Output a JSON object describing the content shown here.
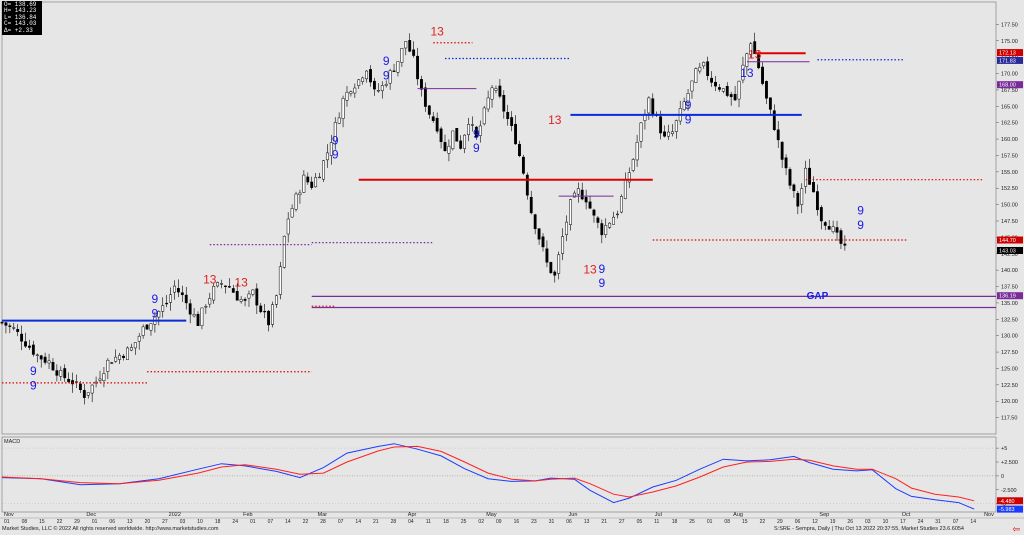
{
  "ohlc_box": {
    "open": "O= 138.69",
    "high": "H= 143.23",
    "low": "L= 136.84",
    "close": "C= 143.03",
    "change": "Δ= +2.33"
  },
  "colors": {
    "background": "#e6e6e6",
    "up_candle": "#ffffff",
    "down_candle": "#000000",
    "td_buy": "#1a1ae6",
    "td_sell": "#e02020",
    "macd_line": "#1a3cff",
    "signal_line": "#ff2020",
    "gap_band": "#7a2b9a"
  },
  "chart_data": [
    {
      "type": "candlestick",
      "symbol": "SRE",
      "ticker_line": "S:SRE - Sempra, Daily",
      "ylim": [
        115,
        180
      ],
      "y_ticks": [
        "177.50",
        "175.00",
        "172.50",
        "170.00",
        "167.50",
        "165.00",
        "162.50",
        "160.00",
        "157.50",
        "155.00",
        "152.50",
        "150.00",
        "147.50",
        "145.00",
        "142.50",
        "140.00",
        "137.50",
        "135.00",
        "132.50",
        "130.00",
        "127.50",
        "125.00",
        "122.50",
        "120.00",
        "117.50"
      ],
      "price_tags": [
        {
          "label": "172.13",
          "value": 173.2,
          "color": "#d00000"
        },
        {
          "label": "171.83",
          "value": 172.0,
          "color": "#2a2a9a"
        },
        {
          "label": "168.00",
          "value": 168.3,
          "color": "#7a2b9a"
        },
        {
          "label": "144.70",
          "value": 144.6,
          "color": "#d00000"
        },
        {
          "label": "143.03",
          "value": 143.0,
          "color": "#000000"
        },
        {
          "label": "136.19",
          "value": 136.1,
          "color": "#7a2b9a"
        }
      ],
      "x_month_labels": [
        {
          "text": "Nov",
          "index": 0
        },
        {
          "text": "Dec",
          "index": 21
        },
        {
          "text": "2022",
          "index": 42
        },
        {
          "text": "Feb",
          "index": 61
        },
        {
          "text": "Mar",
          "index": 80
        },
        {
          "text": "Apr",
          "index": 103
        },
        {
          "text": "May",
          "index": 123
        },
        {
          "text": "Jun",
          "index": 144
        },
        {
          "text": "Jul",
          "index": 166
        },
        {
          "text": "Aug",
          "index": 186
        },
        {
          "text": "Sep",
          "index": 208
        },
        {
          "text": "Oct",
          "index": 229
        },
        {
          "text": "Nov",
          "index": 250
        }
      ],
      "x_day_labels": [
        "01",
        "08",
        "15",
        "22",
        "29",
        "01",
        "06",
        "13",
        "20",
        "27",
        "03",
        "10",
        "18",
        "24",
        "01",
        "07",
        "14",
        "22",
        "28",
        "07",
        "14",
        "21",
        "28",
        "04",
        "11",
        "18",
        "25",
        "02",
        "09",
        "16",
        "23",
        "31",
        "06",
        "13",
        "21",
        "27",
        "05",
        "11",
        "18",
        "25",
        "01",
        "08",
        "15",
        "22",
        "29",
        "06",
        "12",
        "19",
        "26",
        "03",
        "10",
        "17",
        "24",
        "31",
        "07",
        "14"
      ],
      "close_path": [
        [
          0,
          132
        ],
        [
          3,
          131
        ],
        [
          6,
          129
        ],
        [
          9,
          127
        ],
        [
          12,
          126
        ],
        [
          15,
          124
        ],
        [
          18,
          123
        ],
        [
          21,
          121
        ],
        [
          24,
          123
        ],
        [
          27,
          126
        ],
        [
          30,
          127
        ],
        [
          33,
          128
        ],
        [
          36,
          131
        ],
        [
          39,
          133
        ],
        [
          42,
          135
        ],
        [
          44,
          137.5
        ],
        [
          46,
          136
        ],
        [
          48,
          134
        ],
        [
          50,
          132
        ],
        [
          52,
          135
        ],
        [
          54,
          137
        ],
        [
          56,
          138
        ],
        [
          58,
          137.5
        ],
        [
          60,
          136
        ],
        [
          62,
          135
        ],
        [
          64,
          136.5
        ],
        [
          66,
          134
        ],
        [
          67,
          133
        ],
        [
          68,
          132
        ],
        [
          70,
          136
        ],
        [
          71,
          140
        ],
        [
          72,
          145
        ],
        [
          73,
          148
        ],
        [
          75,
          151
        ],
        [
          77,
          154
        ],
        [
          79,
          153
        ],
        [
          81,
          155
        ],
        [
          83,
          158
        ],
        [
          85,
          162
        ],
        [
          87,
          166
        ],
        [
          89,
          168
        ],
        [
          91,
          169
        ],
        [
          93,
          171
        ],
        [
          95,
          167
        ],
        [
          97,
          168
        ],
        [
          99,
          170
        ],
        [
          101,
          172
        ],
        [
          103,
          175
        ],
        [
          105,
          172
        ],
        [
          107,
          167
        ],
        [
          109,
          164
        ],
        [
          111,
          162
        ],
        [
          113,
          158
        ],
        [
          115,
          161
        ],
        [
          117,
          159
        ],
        [
          119,
          163
        ],
        [
          121,
          160
        ],
        [
          123,
          164
        ],
        [
          125,
          168
        ],
        [
          127,
          166
        ],
        [
          129,
          163
        ],
        [
          131,
          160
        ],
        [
          133,
          155
        ],
        [
          135,
          149
        ],
        [
          137,
          145
        ],
        [
          139,
          141
        ],
        [
          141,
          139
        ],
        [
          143,
          145
        ],
        [
          145,
          150
        ],
        [
          147,
          152
        ],
        [
          149,
          151
        ],
        [
          151,
          148
        ],
        [
          153,
          146
        ],
        [
          155,
          147.5
        ],
        [
          157,
          149
        ],
        [
          159,
          153
        ],
        [
          161,
          157
        ],
        [
          163,
          162
        ],
        [
          165,
          166
        ],
        [
          167,
          163
        ],
        [
          169,
          160
        ],
        [
          171,
          161
        ],
        [
          173,
          164
        ],
        [
          175,
          167
        ],
        [
          177,
          170
        ],
        [
          179,
          171
        ],
        [
          181,
          169
        ],
        [
          183,
          168
        ],
        [
          185,
          167
        ],
        [
          187,
          166
        ],
        [
          189,
          171
        ],
        [
          191,
          175
        ],
        [
          193,
          171
        ],
        [
          195,
          166
        ],
        [
          197,
          162
        ],
        [
          199,
          157
        ],
        [
          201,
          153
        ],
        [
          203,
          150
        ],
        [
          205,
          155
        ],
        [
          207,
          152
        ],
        [
          209,
          148
        ],
        [
          211,
          147
        ],
        [
          213,
          145
        ],
        [
          215,
          143
        ]
      ]
    },
    {
      "type": "line",
      "title": "MACD",
      "ylim": [
        -6.5,
        7
      ],
      "y_ticks": [
        "+5",
        "+2.500",
        "0",
        "-2.500",
        "-5"
      ],
      "value_tags": [
        {
          "label": "-4.480",
          "value": -4.48,
          "color": "#d00000"
        },
        {
          "label": "-5.983",
          "value": -5.98,
          "color": "#1a3cff"
        }
      ],
      "series": [
        {
          "name": "MACD",
          "points": [
            [
              0,
              -0.3
            ],
            [
              10,
              -0.5
            ],
            [
              20,
              -1.6
            ],
            [
              30,
              -1.4
            ],
            [
              40,
              -0.5
            ],
            [
              50,
              1.2
            ],
            [
              56,
              2.2
            ],
            [
              62,
              1.8
            ],
            [
              70,
              0.8
            ],
            [
              76,
              -0.3
            ],
            [
              82,
              1.5
            ],
            [
              88,
              4.1
            ],
            [
              96,
              5.3
            ],
            [
              100,
              5.8
            ],
            [
              106,
              4.8
            ],
            [
              112,
              3.6
            ],
            [
              118,
              1.3
            ],
            [
              124,
              -0.5
            ],
            [
              130,
              -1.0
            ],
            [
              136,
              -0.9
            ],
            [
              140,
              -0.4
            ],
            [
              146,
              -0.6
            ],
            [
              150,
              -2.6
            ],
            [
              156,
              -4.8
            ],
            [
              160,
              -4.0
            ],
            [
              166,
              -2.0
            ],
            [
              172,
              -0.8
            ],
            [
              178,
              1.2
            ],
            [
              184,
              3.0
            ],
            [
              190,
              2.7
            ],
            [
              196,
              2.9
            ],
            [
              202,
              3.5
            ],
            [
              206,
              2.4
            ],
            [
              212,
              1.2
            ],
            [
              218,
              0.9
            ],
            [
              222,
              1.1
            ],
            [
              228,
              -2.3
            ],
            [
              232,
              -3.7
            ],
            [
              238,
              -4.3
            ],
            [
              244,
              -4.8
            ],
            [
              248,
              -5.98
            ]
          ]
        },
        {
          "name": "Signal",
          "points": [
            [
              0,
              -0.2
            ],
            [
              10,
              -0.5
            ],
            [
              20,
              -1.2
            ],
            [
              30,
              -1.4
            ],
            [
              40,
              -0.8
            ],
            [
              50,
              0.5
            ],
            [
              56,
              1.6
            ],
            [
              62,
              2.0
            ],
            [
              70,
              1.2
            ],
            [
              76,
              0.3
            ],
            [
              82,
              0.5
            ],
            [
              88,
              2.5
            ],
            [
              96,
              4.5
            ],
            [
              100,
              5.2
            ],
            [
              106,
              5.3
            ],
            [
              112,
              4.4
            ],
            [
              118,
              2.5
            ],
            [
              124,
              0.5
            ],
            [
              130,
              -0.6
            ],
            [
              136,
              -0.9
            ],
            [
              140,
              -0.6
            ],
            [
              146,
              -0.4
            ],
            [
              150,
              -1.4
            ],
            [
              156,
              -3.3
            ],
            [
              160,
              -3.8
            ],
            [
              166,
              -2.9
            ],
            [
              172,
              -1.8
            ],
            [
              178,
              -0.2
            ],
            [
              184,
              1.6
            ],
            [
              190,
              2.5
            ],
            [
              196,
              2.6
            ],
            [
              202,
              3.0
            ],
            [
              206,
              2.8
            ],
            [
              212,
              1.8
            ],
            [
              218,
              1.2
            ],
            [
              222,
              1.2
            ],
            [
              228,
              -0.5
            ],
            [
              232,
              -2.2
            ],
            [
              238,
              -3.3
            ],
            [
              244,
              -3.8
            ],
            [
              248,
              -4.48
            ]
          ]
        }
      ]
    }
  ],
  "support_resistance": [
    {
      "kind": "blue-solid",
      "from": 0,
      "to": 47,
      "value": 132.3
    },
    {
      "kind": "red-solid",
      "from": 91,
      "to": 166,
      "value": 153.8
    },
    {
      "kind": "blue-solid",
      "from": 145,
      "to": 204,
      "value": 163.7
    },
    {
      "kind": "red-solid",
      "from": 192,
      "to": 205,
      "value": 173.1
    },
    {
      "kind": "purple-solid",
      "from": 142,
      "to": 156,
      "value": 151.3
    },
    {
      "kind": "purple-solid",
      "from": 106,
      "to": 121,
      "value": 167.7
    },
    {
      "kind": "purple-solid",
      "from": 190,
      "to": 206,
      "value": 171.8
    },
    {
      "kind": "blue-dotted",
      "from": 113,
      "to": 145,
      "value": 172.3
    },
    {
      "kind": "blue-dotted",
      "from": 208,
      "to": 230,
      "value": 172.1
    },
    {
      "kind": "red-dotted",
      "from": 110,
      "to": 120,
      "value": 174.7
    },
    {
      "kind": "red-dotted",
      "from": 0,
      "to": 37,
      "value": 122.8
    },
    {
      "kind": "red-dotted",
      "from": 37,
      "to": 79,
      "value": 124.5
    },
    {
      "kind": "red-dotted",
      "from": 79,
      "to": 85,
      "value": 134.5
    },
    {
      "kind": "red-dotted",
      "from": 166,
      "to": 231,
      "value": 144.6
    },
    {
      "kind": "red-dotted",
      "from": 205,
      "to": 250,
      "value": 153.8
    },
    {
      "kind": "purple-dotted",
      "from": 53,
      "to": 79,
      "value": 143.9
    },
    {
      "kind": "purple-dotted",
      "from": 79,
      "to": 110,
      "value": 144.2
    }
  ],
  "gap": {
    "label": "GAP",
    "top": 136.0,
    "bottom": 134.3,
    "from": 79
  },
  "td_labels": [
    {
      "t": "9",
      "i": 8,
      "v": 124,
      "c": "buy",
      "big": true
    },
    {
      "t": "9",
      "i": 8,
      "v": 121.8,
      "c": "buy",
      "big": true
    },
    {
      "t": "9",
      "i": 39,
      "v": 135.0,
      "c": "buy",
      "big": true
    },
    {
      "t": "9",
      "i": 39,
      "v": 132.8,
      "c": "buy",
      "big": true
    },
    {
      "t": "13",
      "i": 53,
      "v": 138.0,
      "c": "sell",
      "big": true
    },
    {
      "t": "13",
      "i": 61,
      "v": 137.5,
      "c": "sell",
      "big": true
    },
    {
      "t": "9",
      "i": 85,
      "v": 159.2,
      "c": "buy",
      "big": true
    },
    {
      "t": "9",
      "i": 85,
      "v": 157.0,
      "c": "buy",
      "big": true
    },
    {
      "t": "9",
      "i": 98,
      "v": 171.3,
      "c": "buy",
      "big": true
    },
    {
      "t": "9",
      "i": 98,
      "v": 169.1,
      "c": "buy",
      "big": true
    },
    {
      "t": "13",
      "i": 111,
      "v": 175.8,
      "c": "sell",
      "big": true
    },
    {
      "t": "9",
      "i": 121,
      "v": 160.2,
      "c": "buy",
      "big": true
    },
    {
      "t": "9",
      "i": 121,
      "v": 158.0,
      "c": "buy",
      "big": true
    },
    {
      "t": "13",
      "i": 141,
      "v": 162.3,
      "c": "sell",
      "big": true
    },
    {
      "t": "13",
      "i": 150,
      "v": 139.5,
      "c": "sell",
      "big": true
    },
    {
      "t": "9",
      "i": 153,
      "v": 139.6,
      "c": "buy",
      "big": true
    },
    {
      "t": "9",
      "i": 153,
      "v": 137.4,
      "c": "buy",
      "big": true
    },
    {
      "t": "9",
      "i": 175,
      "v": 164.6,
      "c": "buy",
      "big": true
    },
    {
      "t": "9",
      "i": 175,
      "v": 162.4,
      "c": "buy",
      "big": true
    },
    {
      "t": "13",
      "i": 192,
      "v": 172.3,
      "c": "sell",
      "big": true
    },
    {
      "t": "13",
      "i": 190,
      "v": 169.5,
      "c": "buy",
      "big": true
    },
    {
      "t": "9",
      "i": 219,
      "v": 148.5,
      "c": "buy",
      "big": true
    },
    {
      "t": "9",
      "i": 219,
      "v": 146.3,
      "c": "buy",
      "big": true
    },
    {
      "t": "GAP",
      "i": 208,
      "v": 135.6,
      "c": "buy",
      "big": true
    }
  ],
  "footer": {
    "left": "Market Studies, LLC © 2022 All rights reserved worldwide. http://www.marketstudies.com",
    "right": "S:SRE - Sempra, Daily | Thu Oct 13 2022 20:37:55, Market Studies 23.6.6054"
  }
}
